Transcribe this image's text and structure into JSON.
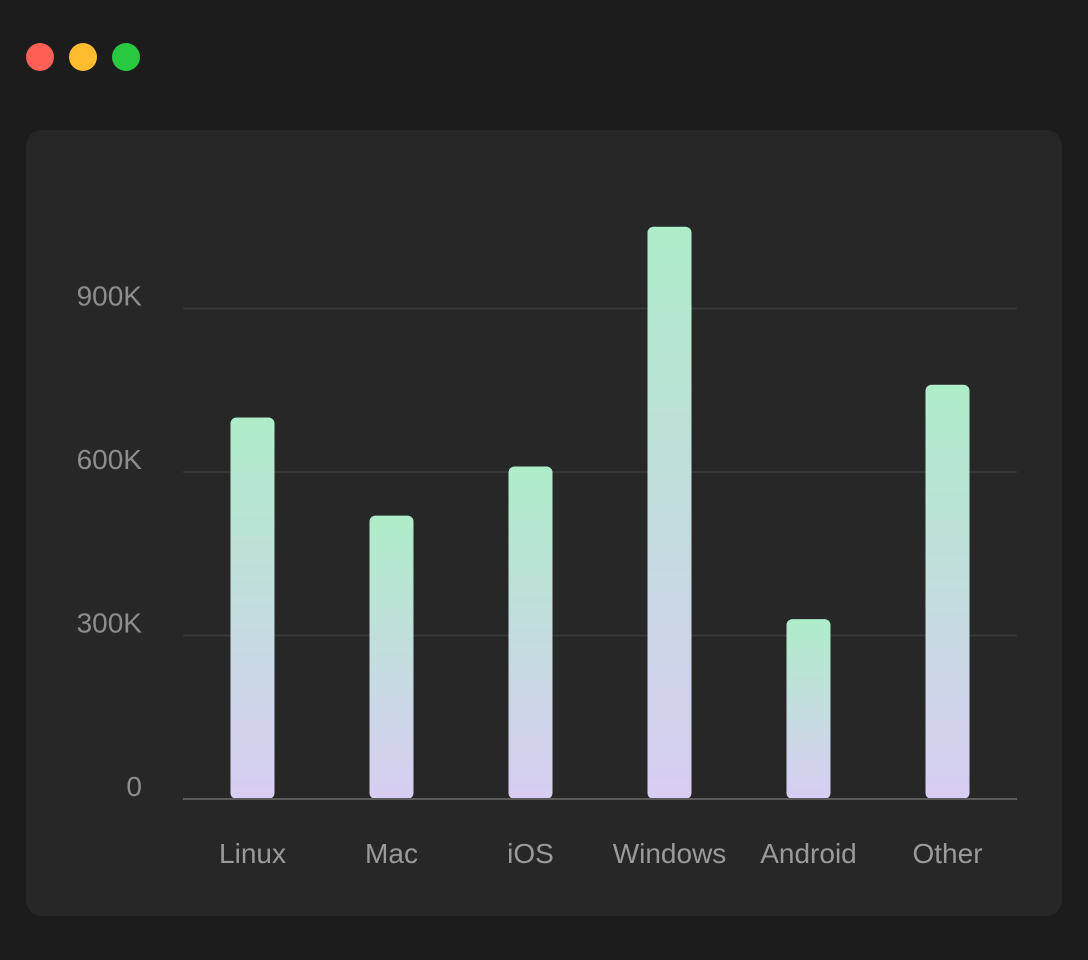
{
  "window": {
    "controls": [
      {
        "name": "close-button",
        "color": "#ff5f57"
      },
      {
        "name": "minimize-button",
        "color": "#febc2e"
      },
      {
        "name": "maximize-button",
        "color": "#28c840"
      }
    ]
  },
  "chart_data": {
    "type": "bar",
    "categories": [
      "Linux",
      "Mac",
      "iOS",
      "Windows",
      "Android",
      "Other"
    ],
    "values": [
      700000,
      520000,
      610000,
      1050000,
      330000,
      760000
    ],
    "ylim": [
      0,
      1050000
    ],
    "yticks": [
      0,
      300000,
      600000,
      900000
    ],
    "ytick_labels": [
      "0",
      "300K",
      "600K",
      "900K"
    ],
    "title": "",
    "xlabel": "",
    "ylabel": "",
    "grid": true,
    "colors": {
      "bar_top": "#aeedc9",
      "bar_bottom": "#d8cdf3",
      "grid": "#3a3a3a",
      "axis": "#5a5a5a",
      "label": "#9a9a9a"
    }
  }
}
